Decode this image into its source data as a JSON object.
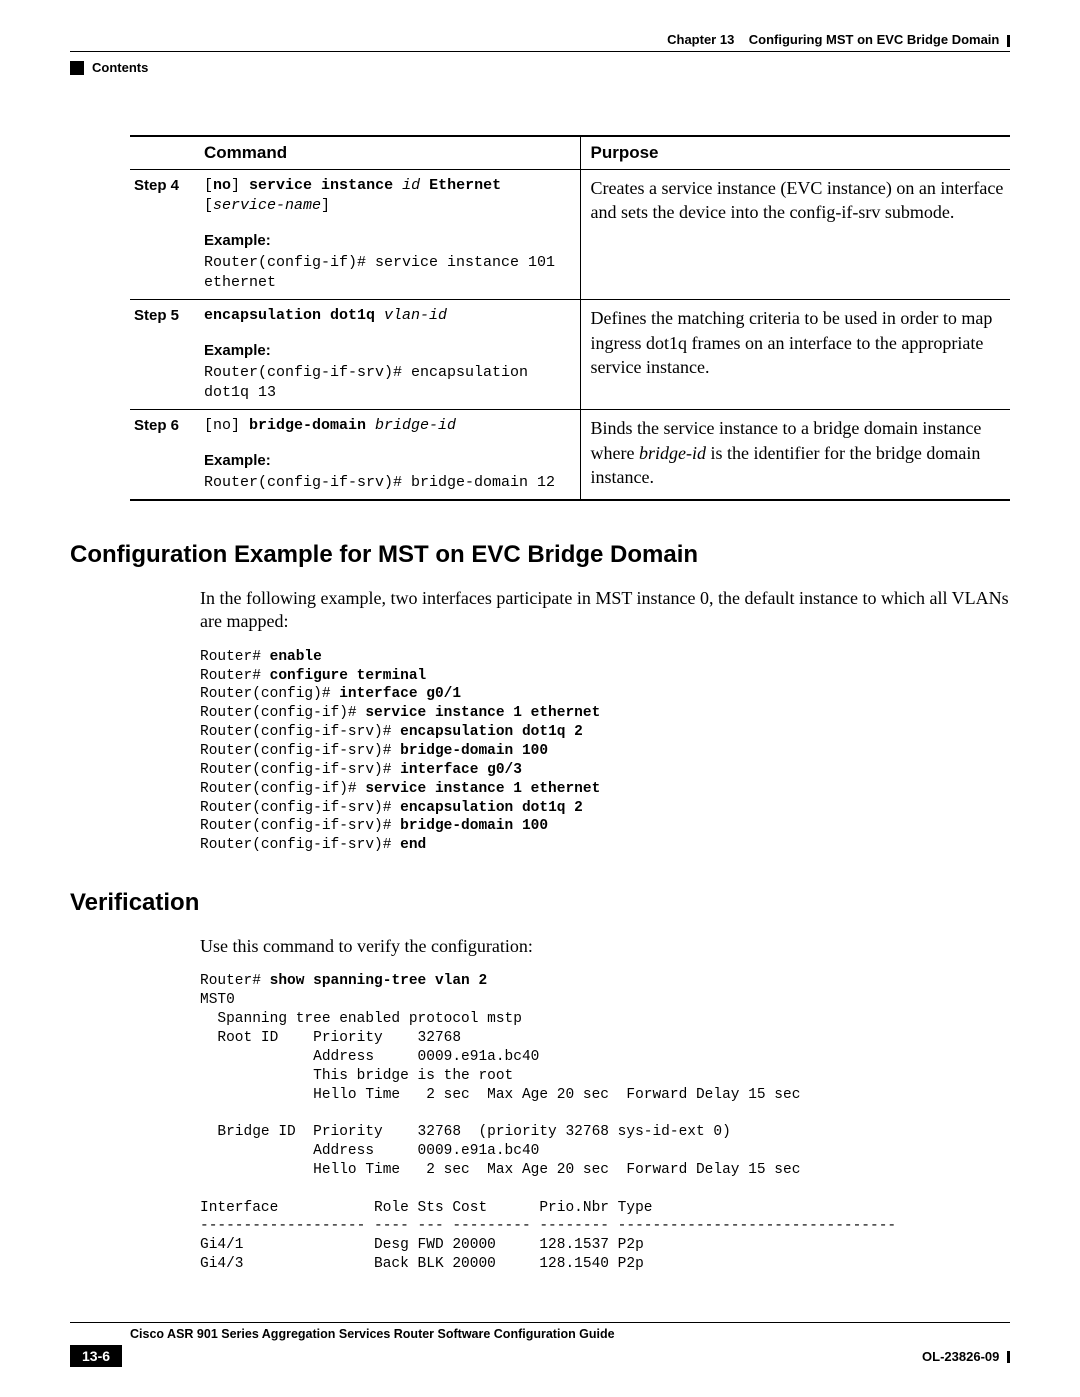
{
  "header": {
    "chapter": "Chapter 13",
    "title": "Configuring MST on EVC Bridge Domain",
    "contents_label": "Contents"
  },
  "table": {
    "headers": {
      "command": "Command",
      "purpose": "Purpose"
    },
    "rows": [
      {
        "step": "Step 4",
        "cmd_parts": {
          "p1": "[",
          "p2": "no",
          "p3": "] ",
          "p4": "service instance",
          "p5": " id ",
          "p6": "Ethernet",
          "p7": "[",
          "p8": "service-name",
          "p9": "]"
        },
        "example_label": "Example:",
        "example_line1": "Router(config-if)# service instance 101",
        "example_line2": "ethernet",
        "purpose": "Creates a service instance (EVC instance) on an interface and sets the device into the config-if-srv submode."
      },
      {
        "step": "Step 5",
        "cmd_parts": {
          "p1": "encapsulation dot1q",
          "p2": " vlan-id"
        },
        "example_label": "Example:",
        "example_line1": "Router(config-if-srv)# encapsulation",
        "example_line2": "dot1q 13",
        "purpose": "Defines the matching criteria to be used in order to map ingress dot1q frames on an interface to the appropriate service instance."
      },
      {
        "step": "Step 6",
        "cmd_parts": {
          "p1": "[no] ",
          "p2": "bridge-domain",
          "p3": " bridge-id"
        },
        "example_label": "Example:",
        "example_line1": "Router(config-if-srv)# bridge-domain 12",
        "purpose_prefix": "Binds the service instance to a bridge domain instance where ",
        "purpose_italic": "bridge-id",
        "purpose_suffix": " is the identifier for the bridge domain instance."
      }
    ]
  },
  "section1": {
    "heading": "Configuration Example for MST on EVC Bridge Domain",
    "intro": "In the following example, two interfaces participate in MST instance 0, the default instance to which all VLANs are mapped:",
    "code": {
      "l1a": "Router# ",
      "l1b": "enable",
      "l2a": "Router# ",
      "l2b": "configure terminal",
      "l3a": "Router(config)# ",
      "l3b": "interface g0/1",
      "l4a": "Router(config-if)# ",
      "l4b": "service instance 1 ethernet",
      "l5a": "Router(config-if-srv)# ",
      "l5b": "encapsulation dot1q 2",
      "l6a": "Router(config-if-srv)# ",
      "l6b": "bridge-domain 100",
      "l7a": "Router(config-if-srv)# ",
      "l7b": "interface g0/3",
      "l8a": "Router(config-if)# ",
      "l8b": "service instance 1 ethernet",
      "l9a": "Router(config-if-srv)# ",
      "l9b": "encapsulation dot1q 2",
      "l10a": "Router(config-if-srv)# ",
      "l10b": "bridge-domain 100",
      "l11a": "Router(config-if-srv)# ",
      "l11b": "end"
    }
  },
  "section2": {
    "heading": "Verification",
    "intro": "Use this command to verify the configuration:",
    "cmd_prefix": "Router# ",
    "cmd_bold": "show spanning-tree vlan 2",
    "output": "\nMST0\n  Spanning tree enabled protocol mstp\n  Root ID    Priority    32768\n             Address     0009.e91a.bc40\n             This bridge is the root\n             Hello Time   2 sec  Max Age 20 sec  Forward Delay 15 sec\n\n  Bridge ID  Priority    32768  (priority 32768 sys-id-ext 0)\n             Address     0009.e91a.bc40\n             Hello Time   2 sec  Max Age 20 sec  Forward Delay 15 sec\n\nInterface           Role Sts Cost      Prio.Nbr Type\n------------------- ---- --- --------- -------- --------------------------------\nGi4/1               Desg FWD 20000     128.1537 P2p\nGi4/3               Back BLK 20000     128.1540 P2p"
  },
  "footer": {
    "guide": "Cisco ASR 901 Series Aggregation Services Router Software Configuration Guide",
    "page": "13-6",
    "docid": "OL-23826-09"
  },
  "colors": {
    "text": "#000000",
    "background": "#ffffff",
    "rule": "#000000"
  },
  "typography": {
    "body_family": "Times New Roman",
    "heading_family": "Arial",
    "mono_family": "Courier New",
    "body_size_pt": 13,
    "heading_size_pt": 18,
    "mono_size_pt": 11
  }
}
